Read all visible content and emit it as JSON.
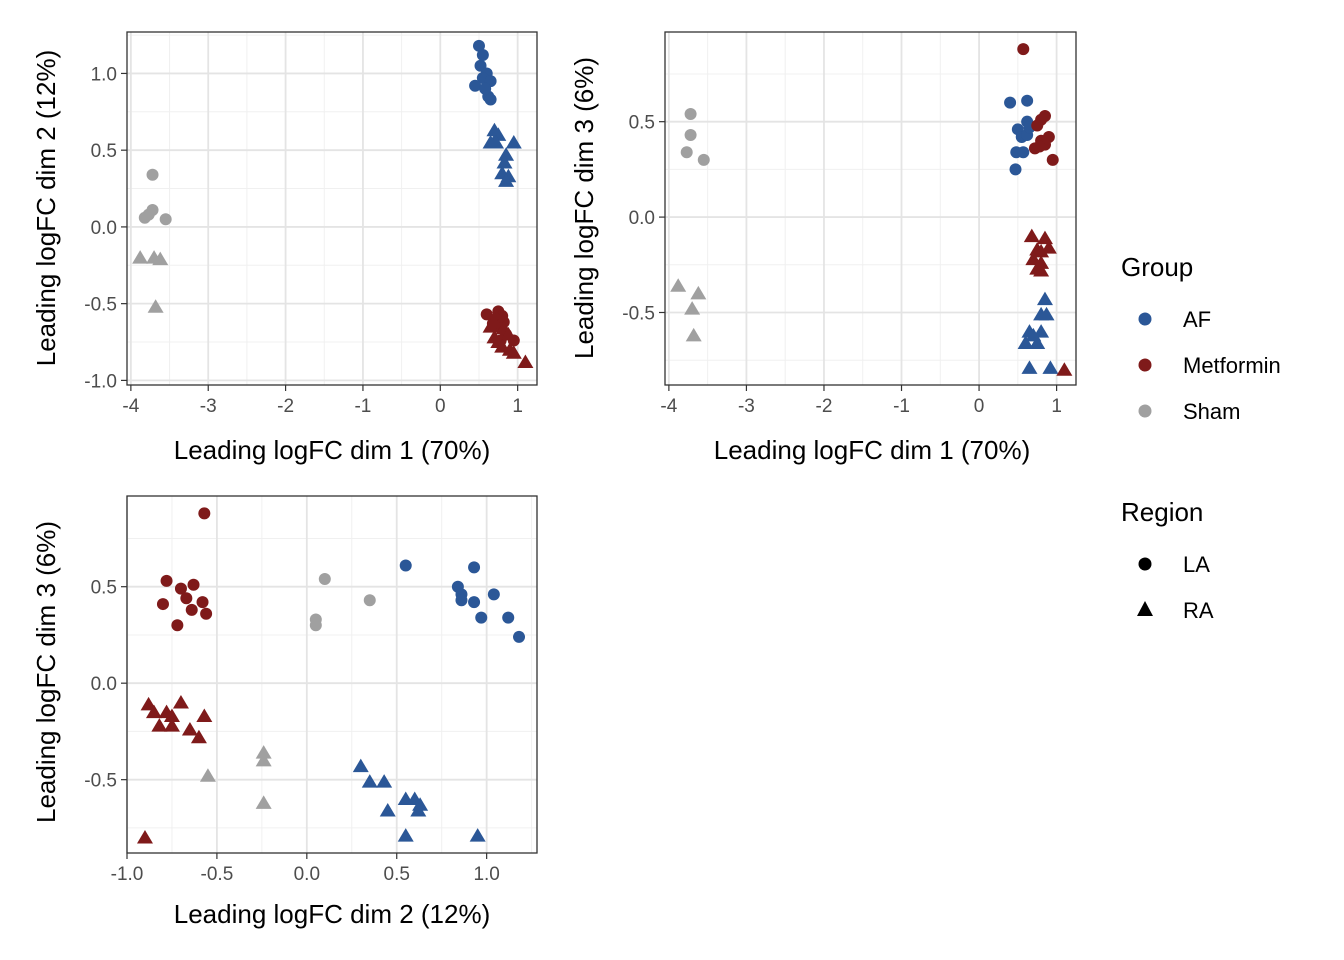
{
  "colors": {
    "AF": "#2B5797",
    "Metformin": "#7F1A1A",
    "Sham": "#A0A0A0",
    "legend_shape": "#000000"
  },
  "legend": {
    "group_title": "Group",
    "group_items": [
      "AF",
      "Metformin",
      "Sham"
    ],
    "region_title": "Region",
    "region_items": [
      "LA",
      "RA"
    ]
  },
  "chart_data": [
    {
      "type": "scatter",
      "xlabel": "Leading logFC dim 1 (70%)",
      "ylabel": "Leading logFC dim 2 (12%)",
      "xlim": [
        -4.05,
        1.25
      ],
      "ylim": [
        -1.03,
        1.27
      ],
      "xticks": [
        "-4",
        "-3",
        "-2",
        "-1",
        "0",
        "1"
      ],
      "yticks": [
        "-1.0",
        "-0.5",
        "0.0",
        "0.5",
        "1.0"
      ],
      "xtick_values": [
        -4,
        -3,
        -2,
        -1,
        0,
        1
      ],
      "ytick_values": [
        -1.0,
        -0.5,
        0.0,
        0.5,
        1.0
      ],
      "series": [
        {
          "group": "AF",
          "region": "LA",
          "points": [
            [
              0.5,
              1.18
            ],
            [
              0.55,
              1.12
            ],
            [
              0.52,
              1.05
            ],
            [
              0.6,
              1.0
            ],
            [
              0.55,
              0.97
            ],
            [
              0.45,
              0.92
            ],
            [
              0.65,
              0.95
            ],
            [
              0.62,
              0.85
            ],
            [
              0.65,
              0.83
            ],
            [
              0.58,
              0.9
            ]
          ]
        },
        {
          "group": "AF",
          "region": "RA",
          "points": [
            [
              0.7,
              0.63
            ],
            [
              0.75,
              0.6
            ],
            [
              0.72,
              0.55
            ],
            [
              0.65,
              0.55
            ],
            [
              0.95,
              0.55
            ],
            [
              0.85,
              0.47
            ],
            [
              0.83,
              0.42
            ],
            [
              0.8,
              0.35
            ],
            [
              0.88,
              0.33
            ],
            [
              0.85,
              0.3
            ]
          ]
        },
        {
          "group": "Metformin",
          "region": "LA",
          "points": [
            [
              0.6,
              -0.57
            ],
            [
              0.75,
              -0.55
            ],
            [
              0.8,
              -0.58
            ],
            [
              0.72,
              -0.6
            ],
            [
              0.68,
              -0.63
            ],
            [
              0.82,
              -0.62
            ],
            [
              0.78,
              -0.66
            ],
            [
              0.85,
              -0.7
            ],
            [
              0.78,
              -0.74
            ],
            [
              0.95,
              -0.74
            ]
          ]
        },
        {
          "group": "Metformin",
          "region": "RA",
          "points": [
            [
              0.7,
              -0.62
            ],
            [
              0.65,
              -0.65
            ],
            [
              0.82,
              -0.66
            ],
            [
              0.7,
              -0.72
            ],
            [
              0.88,
              -0.7
            ],
            [
              0.75,
              -0.75
            ],
            [
              0.8,
              -0.78
            ],
            [
              0.9,
              -0.8
            ],
            [
              0.95,
              -0.82
            ],
            [
              1.1,
              -0.88
            ]
          ]
        },
        {
          "group": "Sham",
          "region": "LA",
          "points": [
            [
              -3.72,
              0.34
            ],
            [
              -3.72,
              0.11
            ],
            [
              -3.77,
              0.08
            ],
            [
              -3.82,
              0.06
            ],
            [
              -3.55,
              0.05
            ]
          ]
        },
        {
          "group": "Sham",
          "region": "RA",
          "points": [
            [
              -3.88,
              -0.2
            ],
            [
              -3.7,
              -0.2
            ],
            [
              -3.62,
              -0.21
            ],
            [
              -3.68,
              -0.52
            ]
          ]
        }
      ]
    },
    {
      "type": "scatter",
      "xlabel": "Leading logFC dim 1 (70%)",
      "ylabel": "Leading logFC dim 3 (6%)",
      "xlim": [
        -4.05,
        1.25
      ],
      "ylim": [
        -0.88,
        0.97
      ],
      "xticks": [
        "-4",
        "-3",
        "-2",
        "-1",
        "0",
        "1"
      ],
      "yticks": [
        "-0.5",
        "0.0",
        "0.5"
      ],
      "xtick_values": [
        -4,
        -3,
        -2,
        -1,
        0,
        1
      ],
      "ytick_values": [
        -0.5,
        0.0,
        0.5
      ],
      "series": [
        {
          "group": "AF",
          "region": "LA",
          "points": [
            [
              0.4,
              0.6
            ],
            [
              0.62,
              0.61
            ],
            [
              0.62,
              0.5
            ],
            [
              0.5,
              0.46
            ],
            [
              0.55,
              0.42
            ],
            [
              0.62,
              0.43
            ],
            [
              0.48,
              0.34
            ],
            [
              0.57,
              0.34
            ],
            [
              0.47,
              0.25
            ],
            [
              0.65,
              0.47
            ]
          ]
        },
        {
          "group": "AF",
          "region": "RA",
          "points": [
            [
              0.85,
              -0.43
            ],
            [
              0.8,
              -0.51
            ],
            [
              0.87,
              -0.51
            ],
            [
              0.65,
              -0.6
            ],
            [
              0.7,
              -0.62
            ],
            [
              0.8,
              -0.6
            ],
            [
              0.6,
              -0.66
            ],
            [
              0.75,
              -0.66
            ],
            [
              0.65,
              -0.79
            ],
            [
              0.92,
              -0.79
            ]
          ]
        },
        {
          "group": "Metformin",
          "region": "LA",
          "points": [
            [
              0.57,
              0.88
            ],
            [
              0.85,
              0.53
            ],
            [
              0.8,
              0.51
            ],
            [
              0.75,
              0.48
            ],
            [
              0.9,
              0.42
            ],
            [
              0.8,
              0.4
            ],
            [
              0.85,
              0.38
            ],
            [
              0.72,
              0.36
            ],
            [
              0.78,
              0.37
            ],
            [
              0.95,
              0.3
            ]
          ]
        },
        {
          "group": "Metformin",
          "region": "RA",
          "points": [
            [
              0.68,
              -0.1
            ],
            [
              0.85,
              -0.11
            ],
            [
              0.9,
              -0.16
            ],
            [
              0.8,
              -0.18
            ],
            [
              0.75,
              -0.17
            ],
            [
              0.7,
              -0.22
            ],
            [
              0.8,
              -0.24
            ],
            [
              0.75,
              -0.27
            ],
            [
              0.8,
              -0.28
            ],
            [
              1.1,
              -0.8
            ]
          ]
        },
        {
          "group": "Sham",
          "region": "LA",
          "points": [
            [
              -3.72,
              0.54
            ],
            [
              -3.72,
              0.43
            ],
            [
              -3.77,
              0.34
            ],
            [
              -3.55,
              0.3
            ]
          ]
        },
        {
          "group": "Sham",
          "region": "RA",
          "points": [
            [
              -3.88,
              -0.36
            ],
            [
              -3.62,
              -0.4
            ],
            [
              -3.7,
              -0.48
            ],
            [
              -3.68,
              -0.62
            ]
          ]
        }
      ]
    },
    {
      "type": "scatter",
      "xlabel": "Leading logFC dim 2 (12%)",
      "ylabel": "Leading logFC dim 3 (6%)",
      "xlim": [
        -1.0,
        1.28
      ],
      "ylim": [
        -0.88,
        0.97
      ],
      "xticks": [
        "-1.0",
        "-0.5",
        "0.0",
        "0.5",
        "1.0"
      ],
      "yticks": [
        "-0.5",
        "0.0",
        "0.5"
      ],
      "xtick_values": [
        -1.0,
        -0.5,
        0.0,
        0.5,
        1.0
      ],
      "ytick_values": [
        -0.5,
        0.0,
        0.5
      ],
      "series": [
        {
          "group": "AF",
          "region": "LA",
          "points": [
            [
              0.55,
              0.61
            ],
            [
              0.93,
              0.6
            ],
            [
              0.84,
              0.5
            ],
            [
              0.86,
              0.46
            ],
            [
              1.04,
              0.46
            ],
            [
              0.86,
              0.43
            ],
            [
              0.93,
              0.42
            ],
            [
              0.97,
              0.34
            ],
            [
              1.12,
              0.34
            ],
            [
              1.18,
              0.24
            ]
          ]
        },
        {
          "group": "AF",
          "region": "RA",
          "points": [
            [
              0.3,
              -0.43
            ],
            [
              0.43,
              -0.51
            ],
            [
              0.35,
              -0.51
            ],
            [
              0.55,
              -0.6
            ],
            [
              0.6,
              -0.6
            ],
            [
              0.63,
              -0.63
            ],
            [
              0.62,
              -0.66
            ],
            [
              0.45,
              -0.66
            ],
            [
              0.55,
              -0.79
            ],
            [
              0.95,
              -0.79
            ]
          ]
        },
        {
          "group": "Metformin",
          "region": "LA",
          "points": [
            [
              -0.57,
              0.88
            ],
            [
              -0.78,
              0.53
            ],
            [
              -0.63,
              0.51
            ],
            [
              -0.7,
              0.49
            ],
            [
              -0.67,
              0.44
            ],
            [
              -0.58,
              0.42
            ],
            [
              -0.8,
              0.41
            ],
            [
              -0.64,
              0.38
            ],
            [
              -0.56,
              0.36
            ],
            [
              -0.72,
              0.3
            ]
          ]
        },
        {
          "group": "Metformin",
          "region": "RA",
          "points": [
            [
              -0.88,
              -0.11
            ],
            [
              -0.7,
              -0.1
            ],
            [
              -0.85,
              -0.15
            ],
            [
              -0.78,
              -0.15
            ],
            [
              -0.75,
              -0.17
            ],
            [
              -0.57,
              -0.17
            ],
            [
              -0.82,
              -0.22
            ],
            [
              -0.75,
              -0.22
            ],
            [
              -0.65,
              -0.24
            ],
            [
              -0.6,
              -0.28
            ],
            [
              -0.9,
              -0.8
            ]
          ]
        },
        {
          "group": "Sham",
          "region": "LA",
          "points": [
            [
              0.1,
              0.54
            ],
            [
              0.35,
              0.43
            ],
            [
              0.05,
              0.33
            ],
            [
              0.05,
              0.3
            ]
          ]
        },
        {
          "group": "Sham",
          "region": "RA",
          "points": [
            [
              -0.24,
              -0.36
            ],
            [
              -0.24,
              -0.4
            ],
            [
              -0.55,
              -0.48
            ],
            [
              -0.24,
              -0.62
            ]
          ]
        }
      ]
    }
  ]
}
